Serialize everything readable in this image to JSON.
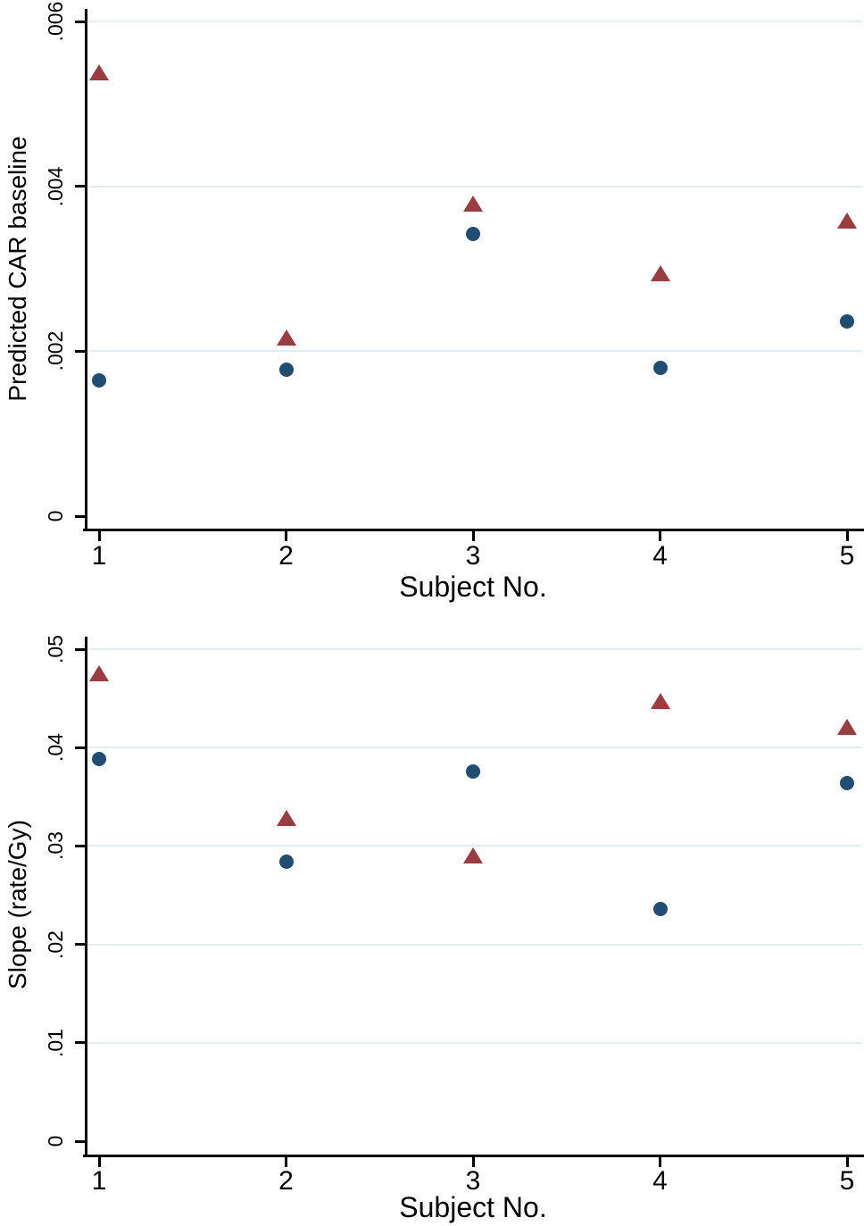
{
  "figure": {
    "background_color": "#ffffff",
    "axis_color": "#000000",
    "gridline_color": "#e3edf0",
    "text_color": "#000000"
  },
  "chart_data": [
    {
      "type": "scatter",
      "title": "",
      "xlabel": "Subject No.",
      "ylabel": "Predicted CAR baseline",
      "x_categories": [
        "1",
        "2",
        "3",
        "4",
        "5"
      ],
      "x": [
        1,
        2,
        3,
        4,
        5
      ],
      "ylim": [
        0,
        0.006
      ],
      "grid": true,
      "legend": "none",
      "yticks": [
        {
          "value": 0,
          "label": "0",
          "gridline": false
        },
        {
          "value": 0.002,
          "label": ".002",
          "gridline": true
        },
        {
          "value": 0.004,
          "label": ".004",
          "gridline": true
        },
        {
          "value": 0.006,
          "label": ".006",
          "gridline": true
        }
      ],
      "series": [
        {
          "name": "triangle-series",
          "marker": "triangle",
          "color": "#9b3c41",
          "values": [
            0.00538,
            0.00216,
            0.00379,
            0.00294,
            0.00358
          ]
        },
        {
          "name": "circle-series",
          "marker": "circle",
          "color": "#1f4d74",
          "values": [
            0.00165,
            0.00178,
            0.00342,
            0.0018,
            0.00236
          ]
        }
      ]
    },
    {
      "type": "scatter",
      "title": "",
      "xlabel": "Subject No.",
      "ylabel": "Slope (rate/Gy)",
      "x_categories": [
        "1",
        "2",
        "3",
        "4",
        "5"
      ],
      "x": [
        1,
        2,
        3,
        4,
        5
      ],
      "ylim": [
        0,
        0.05
      ],
      "grid": true,
      "legend": "none",
      "yticks": [
        {
          "value": 0,
          "label": "0",
          "gridline": false
        },
        {
          "value": 0.01,
          "label": ".01",
          "gridline": true
        },
        {
          "value": 0.02,
          "label": ".02",
          "gridline": true
        },
        {
          "value": 0.03,
          "label": ".03",
          "gridline": true
        },
        {
          "value": 0.04,
          "label": ".04",
          "gridline": true
        },
        {
          "value": 0.05,
          "label": ".05",
          "gridline": true
        }
      ],
      "series": [
        {
          "name": "triangle-series",
          "marker": "triangle",
          "color": "#9b3c41",
          "values": [
            0.0475,
            0.0328,
            0.029,
            0.0447,
            0.0421
          ]
        },
        {
          "name": "circle-series",
          "marker": "circle",
          "color": "#1f4d74",
          "values": [
            0.0388,
            0.0284,
            0.0376,
            0.0236,
            0.0364
          ]
        }
      ]
    }
  ]
}
